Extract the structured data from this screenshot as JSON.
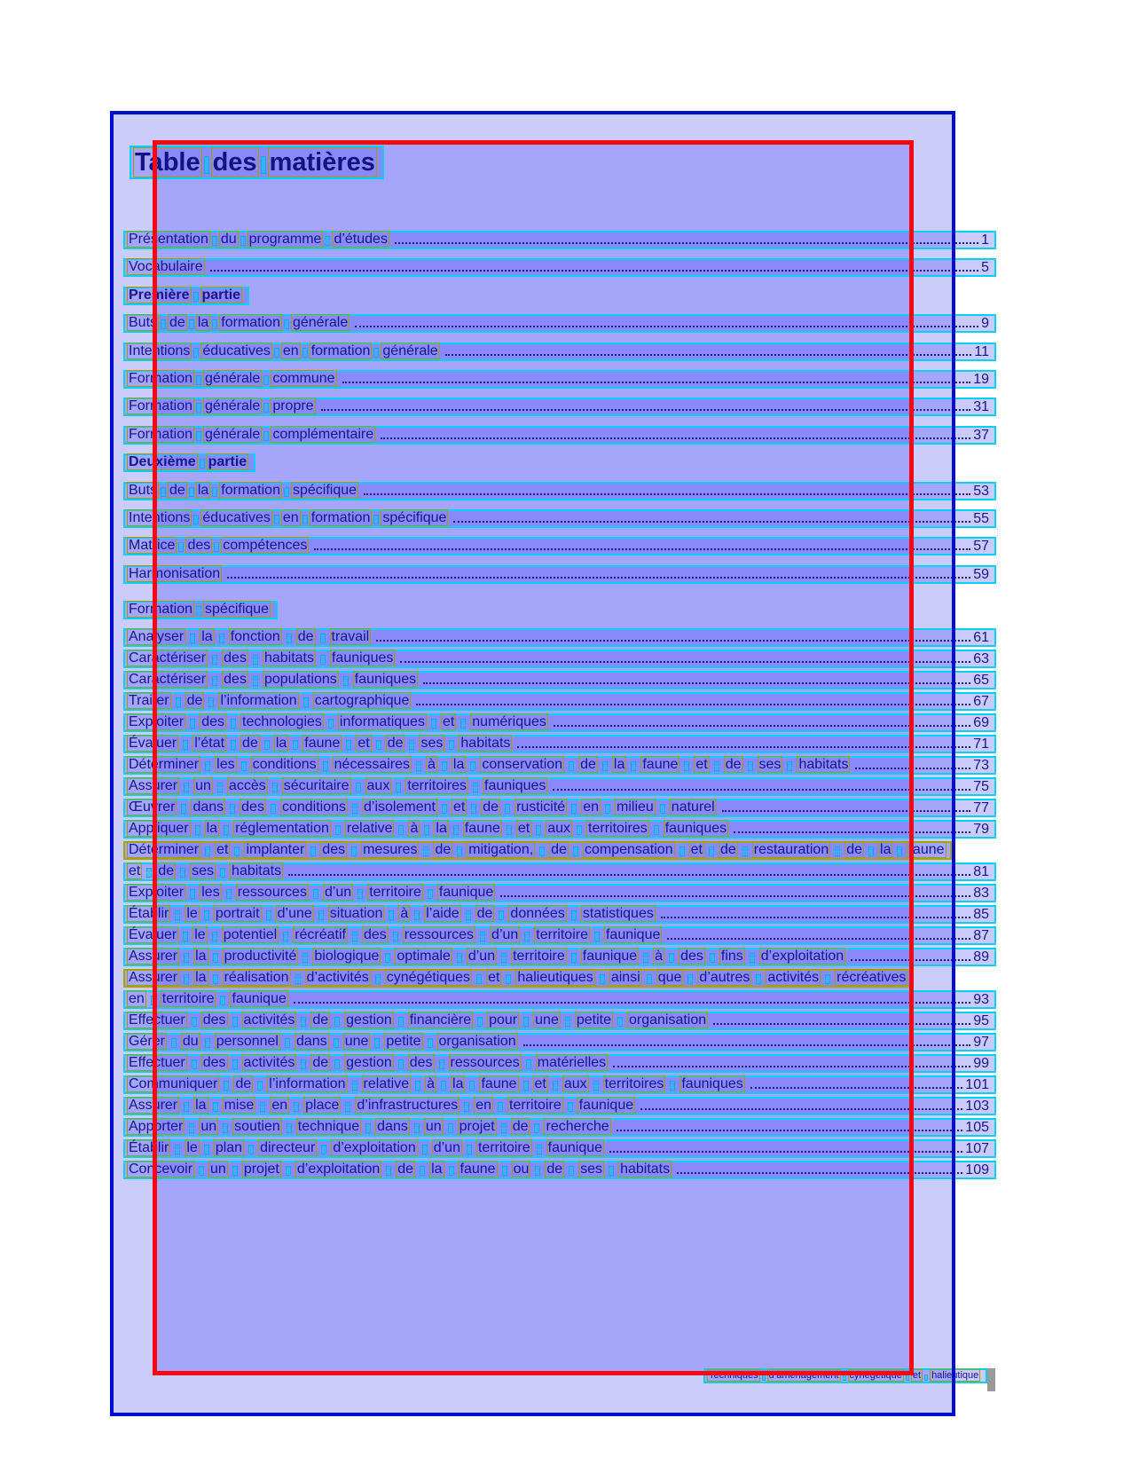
{
  "document": {
    "title": "Table des matières",
    "footer": "Techniques d’aménagement cynégétique et halieutique",
    "toc": [
      {
        "text": "Présentation du programme d’études",
        "page": "1",
        "style": "entry"
      },
      {
        "text": "Vocabulaire",
        "page": "5",
        "style": "entry"
      },
      {
        "text": "Première partie",
        "page": null,
        "style": "section-bold"
      },
      {
        "text": "Buts de la formation générale",
        "page": "9",
        "style": "entry"
      },
      {
        "text": "Intentions éducatives en formation générale",
        "page": "11",
        "style": "entry"
      },
      {
        "text": "Formation générale commune",
        "page": "19",
        "style": "entry"
      },
      {
        "text": "Formation générale propre",
        "page": "31",
        "style": "entry"
      },
      {
        "text": "Formation générale complémentaire",
        "page": "37",
        "style": "entry"
      },
      {
        "text": "Deuxième partie",
        "page": null,
        "style": "section-bold"
      },
      {
        "text": "Buts de la formation spécifique",
        "page": "53",
        "style": "entry"
      },
      {
        "text": "Intentions éducatives en formation spécifique",
        "page": "55",
        "style": "entry"
      },
      {
        "text": "Matrice des compétences",
        "page": "57",
        "style": "entry"
      },
      {
        "text": "Harmonisation",
        "page": "59",
        "style": "entry"
      },
      {
        "text": "Formation spécifique",
        "page": null,
        "style": "section"
      },
      {
        "text": "Analyser la fonction de travail",
        "page": "61",
        "style": "entry"
      },
      {
        "text": "Caractériser des habitats fauniques",
        "page": "63",
        "style": "entry"
      },
      {
        "text": "Caractériser des populations fauniques",
        "page": "65",
        "style": "entry"
      },
      {
        "text": "Traiter de l’information cartographique",
        "page": "67",
        "style": "entry"
      },
      {
        "text": "Exploiter des technologies informatiques et numériques",
        "page": "69",
        "style": "entry"
      },
      {
        "text": "Évaluer l’état de la faune et de ses habitats",
        "page": "71",
        "style": "entry"
      },
      {
        "text": "Déterminer les conditions nécessaires à la conservation de la faune et de ses habitats",
        "page": "73",
        "style": "entry"
      },
      {
        "text": "Assurer un accès sécuritaire aux territoires fauniques",
        "page": "75",
        "style": "entry"
      },
      {
        "text": "Œuvrer dans des conditions d’isolement et de rusticité en milieu naturel",
        "page": "77",
        "style": "entry"
      },
      {
        "text": "Appliquer la réglementation relative à la faune et aux territoires fauniques",
        "page": "79",
        "style": "entry"
      },
      {
        "text": "Déterminer et implanter des mesures de mitigation, de compensation et de restauration de la faune",
        "page": null,
        "style": "wrap"
      },
      {
        "text": "et de ses habitats",
        "page": "81",
        "style": "entry"
      },
      {
        "text": "Exploiter les ressources d’un territoire faunique",
        "page": "83",
        "style": "entry"
      },
      {
        "text": "Établir le portrait d’une situation à l’aide de données statistiques",
        "page": "85",
        "style": "entry"
      },
      {
        "text": "Évaluer le potentiel récréatif des ressources d’un territoire faunique",
        "page": "87",
        "style": "entry"
      },
      {
        "text": "Assurer la productivité biologique optimale d’un territoire faunique à des fins d’exploitation",
        "page": "89",
        "style": "entry"
      },
      {
        "text": "Assurer la réalisation d’activités cynégétiques et halieutiques ainsi que d’autres activités récréatives",
        "page": null,
        "style": "wrap"
      },
      {
        "text": "en territoire faunique",
        "page": "93",
        "style": "entry"
      },
      {
        "text": "Effectuer des activités de gestion financière pour une petite organisation",
        "page": "95",
        "style": "entry"
      },
      {
        "text": "Gérer du personnel dans une petite organisation",
        "page": "97",
        "style": "entry"
      },
      {
        "text": "Effectuer des activités de gestion des ressources matérielles",
        "page": "99",
        "style": "entry"
      },
      {
        "text": "Communiquer de l’information relative à la faune et aux territoires fauniques",
        "page": "101",
        "style": "entry"
      },
      {
        "text": "Assurer la mise en place d’infrastructures en territoire faunique",
        "page": "103",
        "style": "entry"
      },
      {
        "text": "Apporter un soutien technique dans un projet de recherche",
        "page": "105",
        "style": "entry"
      },
      {
        "text": "Établir le plan directeur d’exploitation d’un territoire faunique",
        "page": "107",
        "style": "entry"
      },
      {
        "text": "Concevoir un projet d’exploitation de la faune ou de ses habitats",
        "page": "109",
        "style": "entry"
      }
    ]
  },
  "colors": {
    "page_border": "#000ccd",
    "block_border": "#f60812",
    "line_box_border": "#00d2f6",
    "word_box_border": "#9e9e00",
    "page_fill": "#ccccfb",
    "text": "#17178a",
    "redaction_bar": "#9a9a9a"
  }
}
